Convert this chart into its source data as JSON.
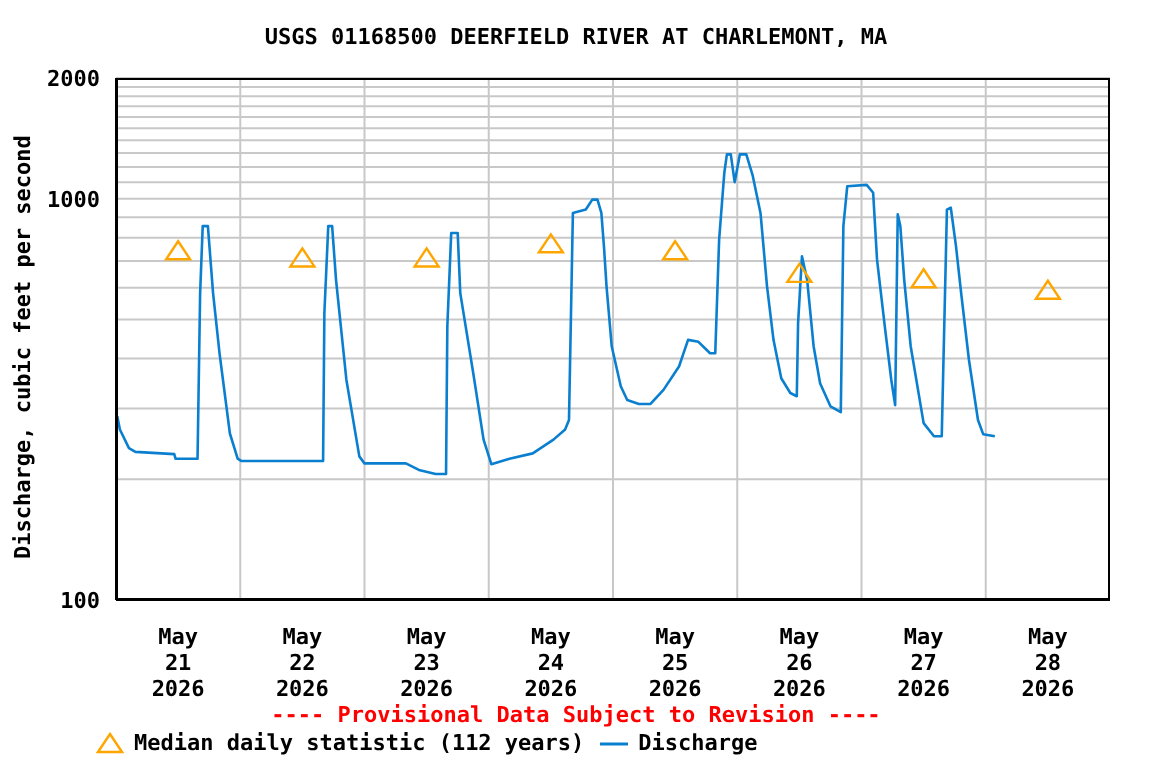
{
  "chart_data": {
    "type": "line",
    "title": "USGS 01168500 DEERFIELD RIVER AT CHARLEMONT, MA",
    "ylabel": "Discharge, cubic feet per second",
    "annotations": [
      "---- Provisional Data Subject to Revision ----"
    ],
    "log": "y",
    "grid": true,
    "legend": "bottom",
    "ylim": [
      100,
      2000
    ],
    "yticks": [
      100,
      {
        "value": 200,
        "label": null
      },
      {
        "value": 300,
        "label": null
      },
      {
        "value": 400,
        "label": null
      },
      {
        "value": 500,
        "label": null
      },
      {
        "value": 600,
        "label": null
      },
      {
        "value": 700,
        "label": null
      },
      {
        "value": 800,
        "label": null
      },
      {
        "value": 900,
        "label": null
      },
      1000,
      {
        "value": 1100,
        "label": null
      },
      {
        "value": 1200,
        "label": null
      },
      {
        "value": 1300,
        "label": null
      },
      {
        "value": 1400,
        "label": null
      },
      {
        "value": 1500,
        "label": null
      },
      {
        "value": 1600,
        "label": null
      },
      {
        "value": 1700,
        "label": null
      },
      {
        "value": 1800,
        "label": null
      },
      {
        "value": 1900,
        "label": null
      },
      2000
    ],
    "xlim": [
      "2026-05-21T00:00",
      "2026-05-29T00:00"
    ],
    "xticks": [
      {
        "value": "2026-05-21T12:00",
        "label": "May\n21\n2026"
      },
      {
        "value": "2026-05-22T00:00",
        "label": null
      },
      {
        "value": "2026-05-22T12:00",
        "label": "May\n22\n2026"
      },
      {
        "value": "2026-05-23T00:00",
        "label": null
      },
      {
        "value": "2026-05-23T12:00",
        "label": "May\n23\n2026"
      },
      {
        "value": "2026-05-24T00:00",
        "label": null
      },
      {
        "value": "2026-05-24T12:00",
        "label": "May\n24\n2026"
      },
      {
        "value": "2026-05-25T00:00",
        "label": null
      },
      {
        "value": "2026-05-25T12:00",
        "label": "May\n25\n2026"
      },
      {
        "value": "2026-05-26T00:00",
        "label": null
      },
      {
        "value": "2026-05-26T12:00",
        "label": "May\n26\n2026"
      },
      {
        "value": "2026-05-27T00:00",
        "label": null
      },
      {
        "value": "2026-05-27T12:00",
        "label": "May\n27\n2026"
      },
      {
        "value": "2026-05-28T00:00",
        "label": null
      },
      {
        "value": "2026-05-28T12:00",
        "label": "May\n28\n2026"
      }
    ],
    "series": [
      {
        "name": "Median daily statistic (112 years)",
        "type": "scatter",
        "marker": "triangle",
        "color": "#ffa500",
        "x": [
          "2026-05-21T12:00",
          "2026-05-22T12:00",
          "2026-05-23T12:00",
          "2026-05-24T12:00",
          "2026-05-25T12:00",
          "2026-05-26T12:00",
          "2026-05-27T12:00",
          "2026-05-28T12:00"
        ],
        "values": [
          740,
          710,
          710,
          770,
          740,
          650,
          630,
          590
        ]
      },
      {
        "name": "Discharge",
        "marker": "none",
        "color": "#0a7fd0",
        "x": [
          "2026-05-21T00:15",
          "2026-05-21T00:45",
          "2026-05-21T02:30",
          "2026-05-21T03:45",
          "2026-05-21T11:15",
          "2026-05-21T11:30",
          "2026-05-21T15:45",
          "2026-05-21T16:15",
          "2026-05-21T16:45",
          "2026-05-21T17:45",
          "2026-05-21T18:45",
          "2026-05-21T20:00",
          "2026-05-21T22:00",
          "2026-05-21T23:30",
          "2026-05-22T00:15",
          "2026-05-22T16:00",
          "2026-05-22T16:15",
          "2026-05-22T17:00",
          "2026-05-22T17:45",
          "2026-05-22T18:30",
          "2026-05-22T20:30",
          "2026-05-22T23:00",
          "2026-05-23T00:00",
          "2026-05-23T08:00",
          "2026-05-23T10:30",
          "2026-05-23T13:45",
          "2026-05-23T15:45",
          "2026-05-23T16:00",
          "2026-05-23T16:45",
          "2026-05-23T18:00",
          "2026-05-23T18:30",
          "2026-05-23T21:00",
          "2026-05-23T23:00",
          "2026-05-24T00:30",
          "2026-05-24T04:00",
          "2026-05-24T08:30",
          "2026-05-24T12:30",
          "2026-05-24T14:45",
          "2026-05-24T15:30",
          "2026-05-24T16:15",
          "2026-05-24T18:45",
          "2026-05-24T20:00",
          "2026-05-24T21:00",
          "2026-05-24T21:45",
          "2026-05-24T22:15",
          "2026-05-24T22:45",
          "2026-05-24T23:45",
          "2026-05-25T01:30",
          "2026-05-25T02:45",
          "2026-05-25T05:00",
          "2026-05-25T07:15",
          "2026-05-25T09:45",
          "2026-05-25T12:45",
          "2026-05-25T14:30",
          "2026-05-25T16:30",
          "2026-05-25T18:45",
          "2026-05-25T19:45",
          "2026-05-25T20:30",
          "2026-05-25T21:30",
          "2026-05-25T22:00",
          "2026-05-25T22:45",
          "2026-05-25T23:30",
          "2026-05-26T00:30",
          "2026-05-26T01:45",
          "2026-05-26T03:00",
          "2026-05-26T04:30",
          "2026-05-26T05:45",
          "2026-05-26T07:00",
          "2026-05-26T08:30",
          "2026-05-26T10:15",
          "2026-05-26T11:30",
          "2026-05-26T11:45",
          "2026-05-26T12:30",
          "2026-05-26T13:30",
          "2026-05-26T14:45",
          "2026-05-26T16:00",
          "2026-05-26T18:00",
          "2026-05-26T20:00",
          "2026-05-26T20:30",
          "2026-05-26T21:15",
          "2026-05-27T01:00",
          "2026-05-27T02:15",
          "2026-05-27T03:00",
          "2026-05-27T04:30",
          "2026-05-27T05:45",
          "2026-05-27T06:30",
          "2026-05-27T07:00",
          "2026-05-27T07:30",
          "2026-05-27T08:15",
          "2026-05-27T09:30",
          "2026-05-27T12:00",
          "2026-05-27T14:00",
          "2026-05-27T15:30",
          "2026-05-27T16:30",
          "2026-05-27T17:15",
          "2026-05-27T18:15",
          "2026-05-27T19:15",
          "2026-05-27T20:45",
          "2026-05-27T22:30",
          "2026-05-27T23:30",
          "2026-05-28T01:45"
        ],
        "values": [
          287,
          266,
          239,
          234,
          231,
          225,
          225,
          582,
          855,
          855,
          582,
          412,
          260,
          225,
          222,
          222,
          519,
          855,
          855,
          628,
          354,
          228,
          219,
          219,
          211,
          206,
          206,
          481,
          822,
          822,
          582,
          368,
          251,
          218,
          225,
          232,
          251,
          266,
          281,
          922,
          940,
          995,
          995,
          922,
          762,
          605,
          429,
          341,
          315,
          308,
          308,
          334,
          382,
          445,
          440,
          412,
          412,
          791,
          1160,
          1290,
          1290,
          1100,
          1290,
          1290,
          1140,
          920,
          605,
          445,
          357,
          328,
          322,
          490,
          719,
          628,
          429,
          347,
          304,
          294,
          855,
          1075,
          1083,
          1035,
          705,
          481,
          354,
          306,
          915,
          855,
          628,
          429,
          276,
          256,
          256,
          940,
          950,
          762,
          582,
          397,
          281,
          259,
          256
        ]
      }
    ]
  }
}
